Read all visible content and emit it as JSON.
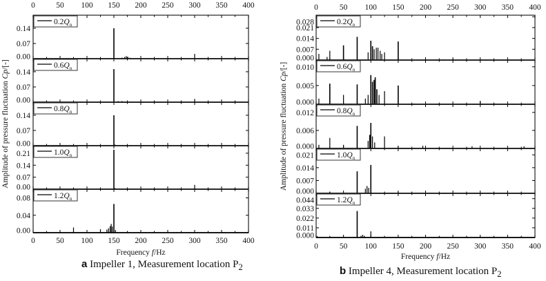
{
  "chart_data": [
    {
      "type": "line",
      "caption_letter": "a",
      "caption_text": "Impeller 1, Measurement location P",
      "caption_sub": "2",
      "xlabel": "Frequency",
      "xlabel_var": "f",
      "xlabel_unit": "/Hz",
      "ylabel_pre": "Amplitude of pressure fluctuation ",
      "ylabel_var": "Cp",
      "ylabel_unit": "/[-]",
      "xlim": [
        0,
        400
      ],
      "xticks": [
        0,
        50,
        100,
        150,
        200,
        250,
        300,
        350,
        400
      ],
      "grid": false,
      "legend_placement": "top-left",
      "panels": [
        {
          "name": "0.2Q",
          "sub": "n",
          "ylim": [
            0,
            0.2
          ],
          "yticks": [
            "0.00",
            "0.07",
            "0.14"
          ],
          "peaks": [
            [
              150,
              0.14
            ],
            [
              165,
              0.005
            ],
            [
              170,
              0.008
            ],
            [
              173,
              0.012
            ],
            [
              176,
              0.008
            ],
            [
              180,
              0.004
            ],
            [
              300,
              0.022
            ],
            [
              25,
              0.002
            ],
            [
              75,
              0.002
            ]
          ]
        },
        {
          "name": "0.6Q",
          "sub": "n",
          "ylim": [
            0,
            0.2
          ],
          "yticks": [
            "0.00",
            "0.07",
            "0.14"
          ],
          "peaks": [
            [
              150,
              0.152
            ],
            [
              158,
              0.005
            ],
            [
              165,
              0.005
            ],
            [
              300,
              0.015
            ],
            [
              75,
              0.002
            ]
          ]
        },
        {
          "name": "0.8Q",
          "sub": "n",
          "ylim": [
            0,
            0.2
          ],
          "yticks": [
            "0.00",
            "0.07",
            "0.14"
          ],
          "peaks": [
            [
              150,
              0.14
            ],
            [
              152,
              0.005
            ],
            [
              300,
              0.004
            ]
          ]
        },
        {
          "name": "1.0Q",
          "sub": "n",
          "ylim": [
            0,
            0.254
          ],
          "yticks": [
            "0.00",
            "0.07",
            "0.14",
            "0.21"
          ],
          "peaks": [
            [
              150,
              0.23
            ],
            [
              152,
              0.006
            ],
            [
              300,
              0.025
            ]
          ]
        },
        {
          "name": "1.2Q",
          "sub": "n",
          "ylim": [
            0,
            0.1
          ],
          "yticks": [
            "0.00",
            "0.04",
            "0.08"
          ],
          "peaks": [
            [
              150,
              0.066
            ],
            [
              145,
              0.02
            ],
            [
              143,
              0.015
            ],
            [
              140,
              0.01
            ],
            [
              137,
              0.007
            ],
            [
              147,
              0.014
            ],
            [
              153,
              0.006
            ],
            [
              125,
              0.008
            ],
            [
              75,
              0.012
            ],
            [
              25,
              0.002
            ]
          ]
        }
      ]
    },
    {
      "type": "line",
      "caption_letter": "b",
      "caption_text": "Impeller 4, Measurement location P",
      "caption_sub": "2",
      "xlabel": "Frequency",
      "xlabel_var": "f",
      "xlabel_unit": "/Hz",
      "ylabel_pre": "Amplitude of pressure fluctuation ",
      "ylabel_var": "Cp",
      "ylabel_unit": "/[-]",
      "xlim": [
        0,
        400
      ],
      "xticks": [
        0,
        50,
        100,
        150,
        200,
        250,
        300,
        350,
        400
      ],
      "grid": false,
      "legend_placement": "top-left",
      "panels": [
        {
          "name": "0.2Q",
          "sub": "n",
          "ylim": [
            0,
            0.029
          ],
          "yticks": [
            "0.000",
            "0.007",
            "0.014",
            "0.021",
            "0.028"
          ],
          "peaks": [
            [
              5,
              0.004
            ],
            [
              20,
              0.002
            ],
            [
              25,
              0.006
            ],
            [
              50,
              0.0095
            ],
            [
              75,
              0.015
            ],
            [
              95,
              0.005
            ],
            [
              100,
              0.0125
            ],
            [
              103,
              0.009
            ],
            [
              106,
              0.007
            ],
            [
              110,
              0.008
            ],
            [
              113,
              0.008
            ],
            [
              117,
              0.006
            ],
            [
              120,
              0.004
            ],
            [
              125,
              0.005
            ],
            [
              150,
              0.012
            ],
            [
              200,
              0.0008
            ],
            [
              250,
              0.0008
            ]
          ]
        },
        {
          "name": "0.6Q",
          "sub": "n",
          "ylim": [
            0,
            0.0118
          ],
          "yticks": [
            "0.000",
            "0.005",
            "0.010"
          ],
          "peaks": [
            [
              5,
              0.0015
            ],
            [
              25,
              0.0055
            ],
            [
              50,
              0.0025
            ],
            [
              75,
              0.0053
            ],
            [
              90,
              0.0015
            ],
            [
              95,
              0.0025
            ],
            [
              100,
              0.0078
            ],
            [
              103,
              0.006
            ],
            [
              106,
              0.0065
            ],
            [
              108,
              0.0072
            ],
            [
              111,
              0.004
            ],
            [
              115,
              0.0025
            ],
            [
              125,
              0.0035
            ],
            [
              150,
              0.005
            ],
            [
              300,
              0.0009
            ]
          ]
        },
        {
          "name": "0.8Q",
          "sub": "n",
          "ylim": [
            0,
            0.0147
          ],
          "yticks": [
            "0.000",
            "0.006",
            "0.012"
          ],
          "peaks": [
            [
              5,
              0.0012
            ],
            [
              25,
              0.0035
            ],
            [
              50,
              0.0012
            ],
            [
              75,
              0.0075
            ],
            [
              95,
              0.0025
            ],
            [
              98,
              0.0045
            ],
            [
              100,
              0.0085
            ],
            [
              103,
              0.004
            ],
            [
              107,
              0.002
            ],
            [
              125,
              0.004
            ],
            [
              150,
              0.0008
            ],
            [
              195,
              0.0009
            ],
            [
              285,
              0.0007
            ],
            [
              380,
              0.0007
            ]
          ]
        },
        {
          "name": "1.0Q",
          "sub": "n",
          "ylim": [
            0,
            0.0245
          ],
          "yticks": [
            "0.000",
            "0.007",
            "0.014",
            "0.021"
          ],
          "peaks": [
            [
              75,
              0.012
            ],
            [
              90,
              0.0025
            ],
            [
              93,
              0.004
            ],
            [
              96,
              0.003
            ],
            [
              100,
              0.0155
            ],
            [
              150,
              0.0008
            ],
            [
              25,
              0.0008
            ]
          ]
        },
        {
          "name": "1.2Q",
          "sub": "n",
          "ylim": [
            0,
            0.05
          ],
          "yticks": [
            "0.000",
            "0.011",
            "0.022",
            "0.033",
            "0.044"
          ],
          "peaks": [
            [
              75,
              0.03
            ],
            [
              82,
              0.002
            ],
            [
              85,
              0.003
            ],
            [
              88,
              0.002
            ],
            [
              100,
              0.007
            ],
            [
              2,
              0.0015
            ]
          ]
        }
      ]
    }
  ],
  "colors": {
    "line": "#000000",
    "axis": "#222222"
  }
}
